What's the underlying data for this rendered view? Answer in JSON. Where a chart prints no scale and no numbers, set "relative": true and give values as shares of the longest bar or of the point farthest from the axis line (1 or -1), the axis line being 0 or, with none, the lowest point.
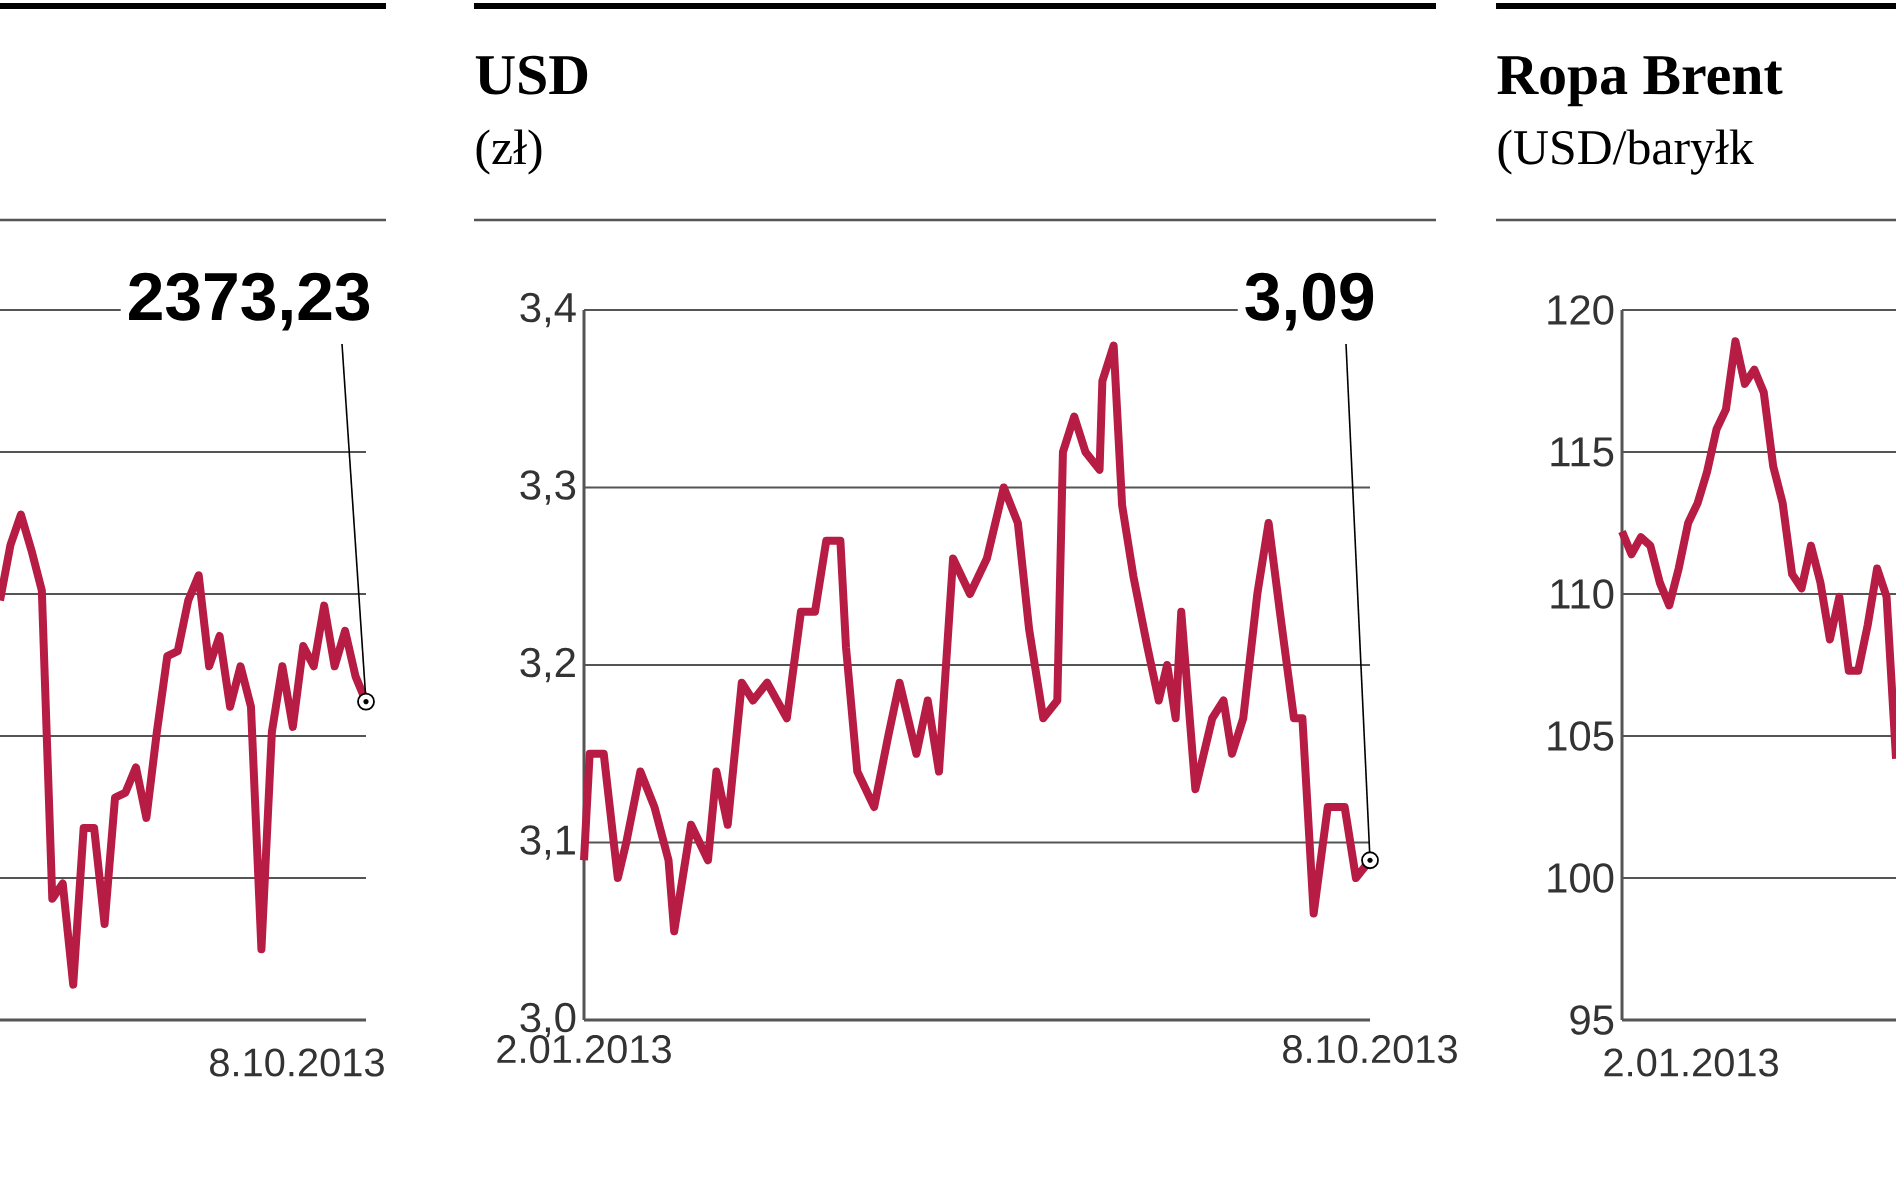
{
  "chart_data": [
    {
      "type": "line",
      "relative": true,
      "color": "#b71c44",
      "grid": "y",
      "categories": [
        null,
        null,
        null,
        null,
        null,
        null,
        null,
        null,
        null,
        null,
        null,
        null,
        null,
        null,
        null,
        null,
        null,
        null,
        null,
        null,
        null,
        null,
        null,
        null,
        null,
        null,
        null,
        null,
        null,
        null,
        null,
        null,
        null,
        null,
        null,
        null
      ],
      "values": [
        0.83,
        0.94,
        1.0,
        0.93,
        0.85,
        0.24,
        0.27,
        0.07,
        0.38,
        0.38,
        0.19,
        0.44,
        0.45,
        0.5,
        0.4,
        0.57,
        0.72,
        0.73,
        0.83,
        0.88,
        0.7,
        0.76,
        0.62,
        0.7,
        0.62,
        0.14,
        0.57,
        0.7,
        0.58,
        0.74,
        0.7,
        0.82,
        0.7,
        0.77,
        0.68,
        0.63
      ],
      "annotations": [
        "2373,23",
        "8.10.2013"
      ]
    },
    {
      "type": "line",
      "title": "USD",
      "subtitle": "(zł)",
      "color": "#b71c44",
      "grid": "y",
      "x": [
        "2013-01-02",
        "2013-01-04",
        "2013-01-09",
        "2013-01-14",
        "2013-01-17",
        "2013-01-22",
        "2013-01-27",
        "2013-02-01",
        "2013-02-03",
        "2013-02-09",
        "2013-02-15",
        "2013-02-18",
        "2013-02-22",
        "2013-02-27",
        "2013-03-03",
        "2013-03-08",
        "2013-03-15",
        "2013-03-20",
        "2013-03-25",
        "2013-03-29",
        "2013-04-03",
        "2013-04-05",
        "2013-04-09",
        "2013-04-15",
        "2013-04-20",
        "2013-04-24",
        "2013-04-30",
        "2013-05-04",
        "2013-05-08",
        "2013-05-13",
        "2013-05-19",
        "2013-05-25",
        "2013-05-31",
        "2013-06-05",
        "2013-06-09",
        "2013-06-14",
        "2013-06-19",
        "2013-06-21",
        "2013-06-25",
        "2013-06-29",
        "2013-07-04",
        "2013-07-05",
        "2013-07-09",
        "2013-07-12",
        "2013-07-16",
        "2013-07-21",
        "2013-07-25",
        "2013-07-28",
        "2013-07-31",
        "2013-08-02",
        "2013-08-05",
        "2013-08-07",
        "2013-08-13",
        "2013-08-17",
        "2013-08-20",
        "2013-08-24",
        "2013-08-29",
        "2013-09-02",
        "2013-09-06",
        "2013-09-11",
        "2013-09-14",
        "2013-09-18",
        "2013-09-23",
        "2013-09-29",
        "2013-10-03",
        "2013-10-08"
      ],
      "values": [
        3.09,
        3.15,
        3.15,
        3.08,
        3.1,
        3.14,
        3.12,
        3.09,
        3.05,
        3.11,
        3.09,
        3.14,
        3.11,
        3.19,
        3.18,
        3.19,
        3.17,
        3.23,
        3.23,
        3.27,
        3.27,
        3.21,
        3.14,
        3.12,
        3.16,
        3.19,
        3.15,
        3.18,
        3.14,
        3.26,
        3.24,
        3.26,
        3.3,
        3.28,
        3.22,
        3.17,
        3.18,
        3.32,
        3.34,
        3.32,
        3.31,
        3.36,
        3.38,
        3.29,
        3.25,
        3.21,
        3.18,
        3.2,
        3.17,
        3.23,
        3.17,
        3.13,
        3.17,
        3.18,
        3.15,
        3.17,
        3.24,
        3.28,
        3.23,
        3.17,
        3.17,
        3.06,
        3.12,
        3.12,
        3.08,
        3.09
      ],
      "xlim": [
        "2013-01-02",
        "2013-10-08"
      ],
      "xticks": [
        {
          "value": "2013-01-02",
          "label": "2.01.2013"
        },
        {
          "value": "2013-10-08",
          "label": "8.10.2013"
        }
      ],
      "ylim": [
        3.0,
        3.4
      ],
      "yticks": [
        {
          "value": 3.0,
          "label": "3,0"
        },
        {
          "value": 3.1,
          "label": "3,1"
        },
        {
          "value": 3.2,
          "label": "3,2"
        },
        {
          "value": 3.3,
          "label": "3,3"
        },
        {
          "value": 3.4,
          "label": "3,4"
        }
      ],
      "annotations": [
        {
          "text": "3,09",
          "x": "2013-10-08",
          "y": 3.09
        }
      ]
    },
    {
      "type": "line",
      "title": "Ropa Brent",
      "subtitle": "(USD/baryłk",
      "color": "#b71c44",
      "grid": "y",
      "categories": [
        null,
        null,
        null,
        null,
        null,
        null,
        null,
        null,
        null,
        null,
        null,
        null,
        null,
        null,
        null,
        null,
        null,
        null,
        null,
        null,
        null,
        null,
        null,
        null,
        null,
        null,
        null,
        null,
        null,
        null
      ],
      "values": [
        112.2,
        111.4,
        112.0,
        111.7,
        110.4,
        109.6,
        110.9,
        112.5,
        113.2,
        114.3,
        115.8,
        116.5,
        118.9,
        117.4,
        117.9,
        117.1,
        114.5,
        113.2,
        110.7,
        110.2,
        111.7,
        110.4,
        108.4,
        109.9,
        107.3,
        107.3,
        108.9,
        110.9,
        109.9,
        104.2
      ],
      "ylim": [
        95,
        120
      ],
      "yticks": [
        {
          "value": 95,
          "label": "95"
        },
        {
          "value": 100,
          "label": "100"
        },
        {
          "value": 105,
          "label": "105"
        },
        {
          "value": 110,
          "label": "110"
        },
        {
          "value": 115,
          "label": "115"
        },
        {
          "value": 120,
          "label": "120"
        }
      ],
      "annotations": [
        "2.01.2013"
      ]
    }
  ]
}
